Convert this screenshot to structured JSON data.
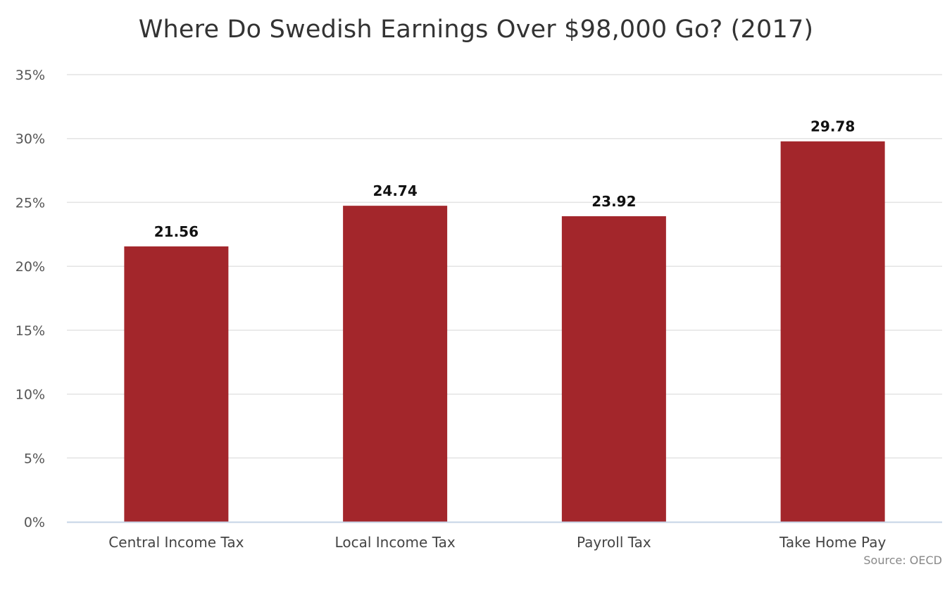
{
  "chart_data": {
    "type": "bar",
    "title": "Where Do Swedish Earnings Over $98,000 Go? (2017)",
    "categories": [
      "Central Income Tax",
      "Local Income Tax",
      "Payroll Tax",
      "Take Home Pay"
    ],
    "values": [
      21.56,
      24.74,
      23.92,
      29.78
    ],
    "data_labels": [
      "21.56",
      "24.74",
      "23.92",
      "29.78"
    ],
    "ylim": [
      0,
      35
    ],
    "yticks": [
      0,
      5,
      10,
      15,
      20,
      25,
      30,
      35
    ],
    "ytick_labels": [
      "0%",
      "5%",
      "10%",
      "15%",
      "20%",
      "25%",
      "30%",
      "35%"
    ],
    "xlabel": "",
    "ylabel": "",
    "grid": true,
    "legend": "none",
    "bar_color": "#a3262b",
    "source": "Source: OECD"
  }
}
